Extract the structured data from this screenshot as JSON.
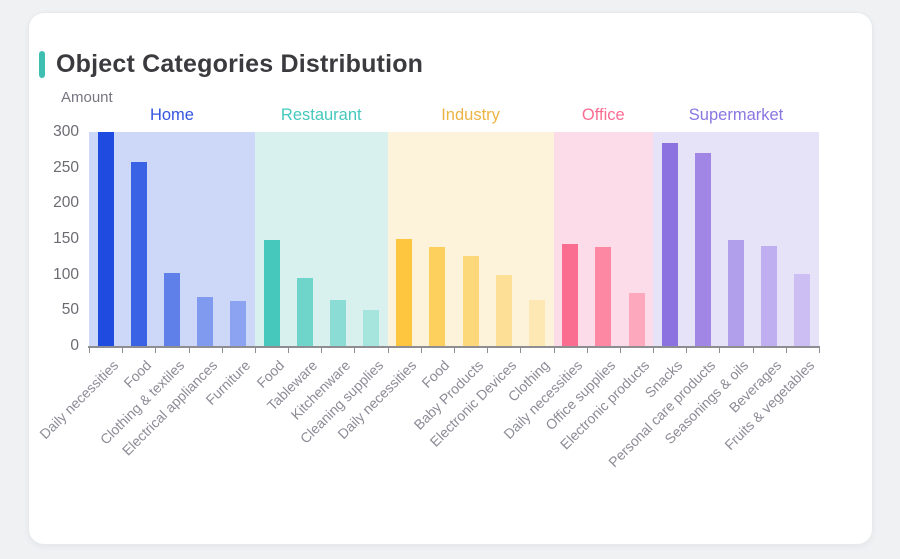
{
  "page": {
    "background": "#eff1f3"
  },
  "card": {
    "title": "Object Categories Distribution",
    "accent_color": "#3fbfb2"
  },
  "chart_data": {
    "type": "bar",
    "title": "Object Categories Distribution",
    "ylabel": "Amount",
    "xlabel": "",
    "ylim": [
      0,
      300
    ],
    "yticks": [
      0,
      50,
      100,
      150,
      200,
      250,
      300
    ],
    "grid": false,
    "legend_position": "group-headers-top",
    "axis_color": "#8e8e92",
    "x_tick_label_color": "#8c8c97",
    "groups": [
      {
        "name": "Home",
        "label_color": "#3355e0",
        "band_color": "#cdd7f8",
        "bar_colors": [
          "#1f4be0",
          "#3a62e4",
          "#5f80e9",
          "#7f9aef",
          "#8ba3f0"
        ],
        "items": [
          {
            "label": "Daily necessities",
            "value": 300
          },
          {
            "label": "Food",
            "value": 258
          },
          {
            "label": "Clothing & textiles",
            "value": 102
          },
          {
            "label": "Electrical appliances",
            "value": 68
          },
          {
            "label": "Furniture",
            "value": 63
          }
        ]
      },
      {
        "name": "Restaurant",
        "label_color": "#46c8bc",
        "band_color": "#d8f1ee",
        "bar_colors": [
          "#46c8bc",
          "#6fd4ca",
          "#8adcd4",
          "#a6e5de"
        ],
        "items": [
          {
            "label": "Food",
            "value": 148
          },
          {
            "label": "Tableware",
            "value": 96
          },
          {
            "label": "Kitchenware",
            "value": 64
          },
          {
            "label": "Cleaning supplies",
            "value": 50
          }
        ]
      },
      {
        "name": "Industry",
        "label_color": "#edb344",
        "band_color": "#fdf3da",
        "bar_colors": [
          "#fec63f",
          "#fdd05e",
          "#fdd87b",
          "#fde096",
          "#fde7b2"
        ],
        "items": [
          {
            "label": "Daily necessities",
            "value": 150
          },
          {
            "label": "Food",
            "value": 139
          },
          {
            "label": "Baby Products",
            "value": 126
          },
          {
            "label": "Electronic Devices",
            "value": 99
          },
          {
            "label": "Clothing",
            "value": 64
          }
        ]
      },
      {
        "name": "Office",
        "label_color": "#fa6d92",
        "band_color": "#fcdce8",
        "bar_colors": [
          "#fb6d90",
          "#fc88a4",
          "#fda8bd"
        ],
        "items": [
          {
            "label": "Daily necessities",
            "value": 143
          },
          {
            "label": "Office supplies",
            "value": 139
          },
          {
            "label": "Electronic products",
            "value": 75
          }
        ]
      },
      {
        "name": "Supermarket",
        "label_color": "#8a76e2",
        "band_color": "#e6e2f8",
        "bar_colors": [
          "#8c71e0",
          "#a186e6",
          "#b29fec",
          "#bfaef0",
          "#ccbef3"
        ],
        "items": [
          {
            "label": "Snacks",
            "value": 285
          },
          {
            "label": "Personal care products",
            "value": 271
          },
          {
            "label": "Seasonings & oils",
            "value": 148
          },
          {
            "label": "Beverages",
            "value": 140
          },
          {
            "label": "Fruits & vegetables",
            "value": 101
          }
        ]
      }
    ]
  }
}
